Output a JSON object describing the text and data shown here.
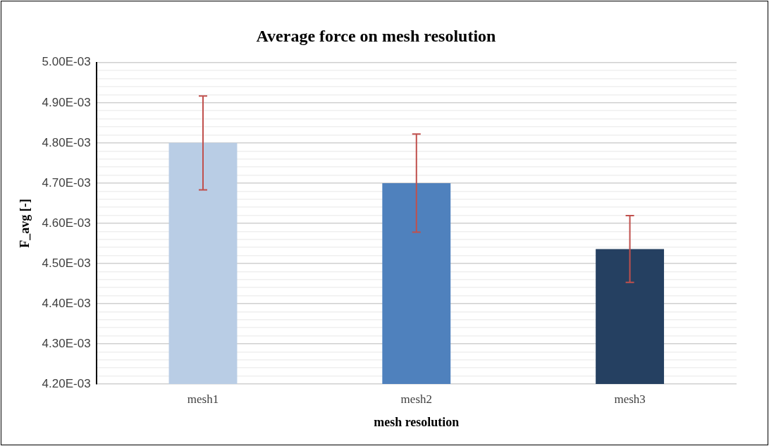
{
  "chart_data": {
    "type": "bar",
    "title": "Average force on mesh resolution",
    "xlabel": "mesh resolution",
    "ylabel": "F_avg [-]",
    "categories": [
      "mesh1",
      "mesh2",
      "mesh3"
    ],
    "values": [
      0.0048,
      0.0047,
      0.004536
    ],
    "colors": [
      "#b9cde5",
      "#4f81bd",
      "#254061"
    ],
    "errors": [
      0.000117,
      0.000122,
      8.3e-05
    ],
    "ylim": [
      0.0042,
      0.005
    ],
    "yticks": [
      {
        "value": 0.0042,
        "label": "4.20E-03"
      },
      {
        "value": 0.00422,
        "label": null
      },
      {
        "value": 0.00424,
        "label": null
      },
      {
        "value": 0.00426,
        "label": null
      },
      {
        "value": 0.00428,
        "label": null
      },
      {
        "value": 0.0043,
        "label": "4.30E-03"
      },
      {
        "value": 0.00432,
        "label": null
      },
      {
        "value": 0.00434,
        "label": null
      },
      {
        "value": 0.00436,
        "label": null
      },
      {
        "value": 0.00438,
        "label": null
      },
      {
        "value": 0.0044,
        "label": "4.40E-03"
      },
      {
        "value": 0.00442,
        "label": null
      },
      {
        "value": 0.00444,
        "label": null
      },
      {
        "value": 0.00446,
        "label": null
      },
      {
        "value": 0.00448,
        "label": null
      },
      {
        "value": 0.0045,
        "label": "4.50E-03"
      },
      {
        "value": 0.00452,
        "label": null
      },
      {
        "value": 0.00454,
        "label": null
      },
      {
        "value": 0.00456,
        "label": null
      },
      {
        "value": 0.00458,
        "label": null
      },
      {
        "value": 0.0046,
        "label": "4.60E-03"
      },
      {
        "value": 0.00462,
        "label": null
      },
      {
        "value": 0.00464,
        "label": null
      },
      {
        "value": 0.00466,
        "label": null
      },
      {
        "value": 0.00468,
        "label": null
      },
      {
        "value": 0.0047,
        "label": "4.70E-03"
      },
      {
        "value": 0.00472,
        "label": null
      },
      {
        "value": 0.00474,
        "label": null
      },
      {
        "value": 0.00476,
        "label": null
      },
      {
        "value": 0.00478,
        "label": null
      },
      {
        "value": 0.0048,
        "label": "4.80E-03"
      },
      {
        "value": 0.00482,
        "label": null
      },
      {
        "value": 0.00484,
        "label": null
      },
      {
        "value": 0.00486,
        "label": null
      },
      {
        "value": 0.00488,
        "label": null
      },
      {
        "value": 0.0049,
        "label": "4.90E-03"
      },
      {
        "value": 0.00492,
        "label": null
      },
      {
        "value": 0.00494,
        "label": null
      },
      {
        "value": 0.00496,
        "label": null
      },
      {
        "value": 0.00498,
        "label": null
      },
      {
        "value": 0.005,
        "label": "5.00E-03"
      }
    ],
    "grid": "y",
    "legend": false
  }
}
